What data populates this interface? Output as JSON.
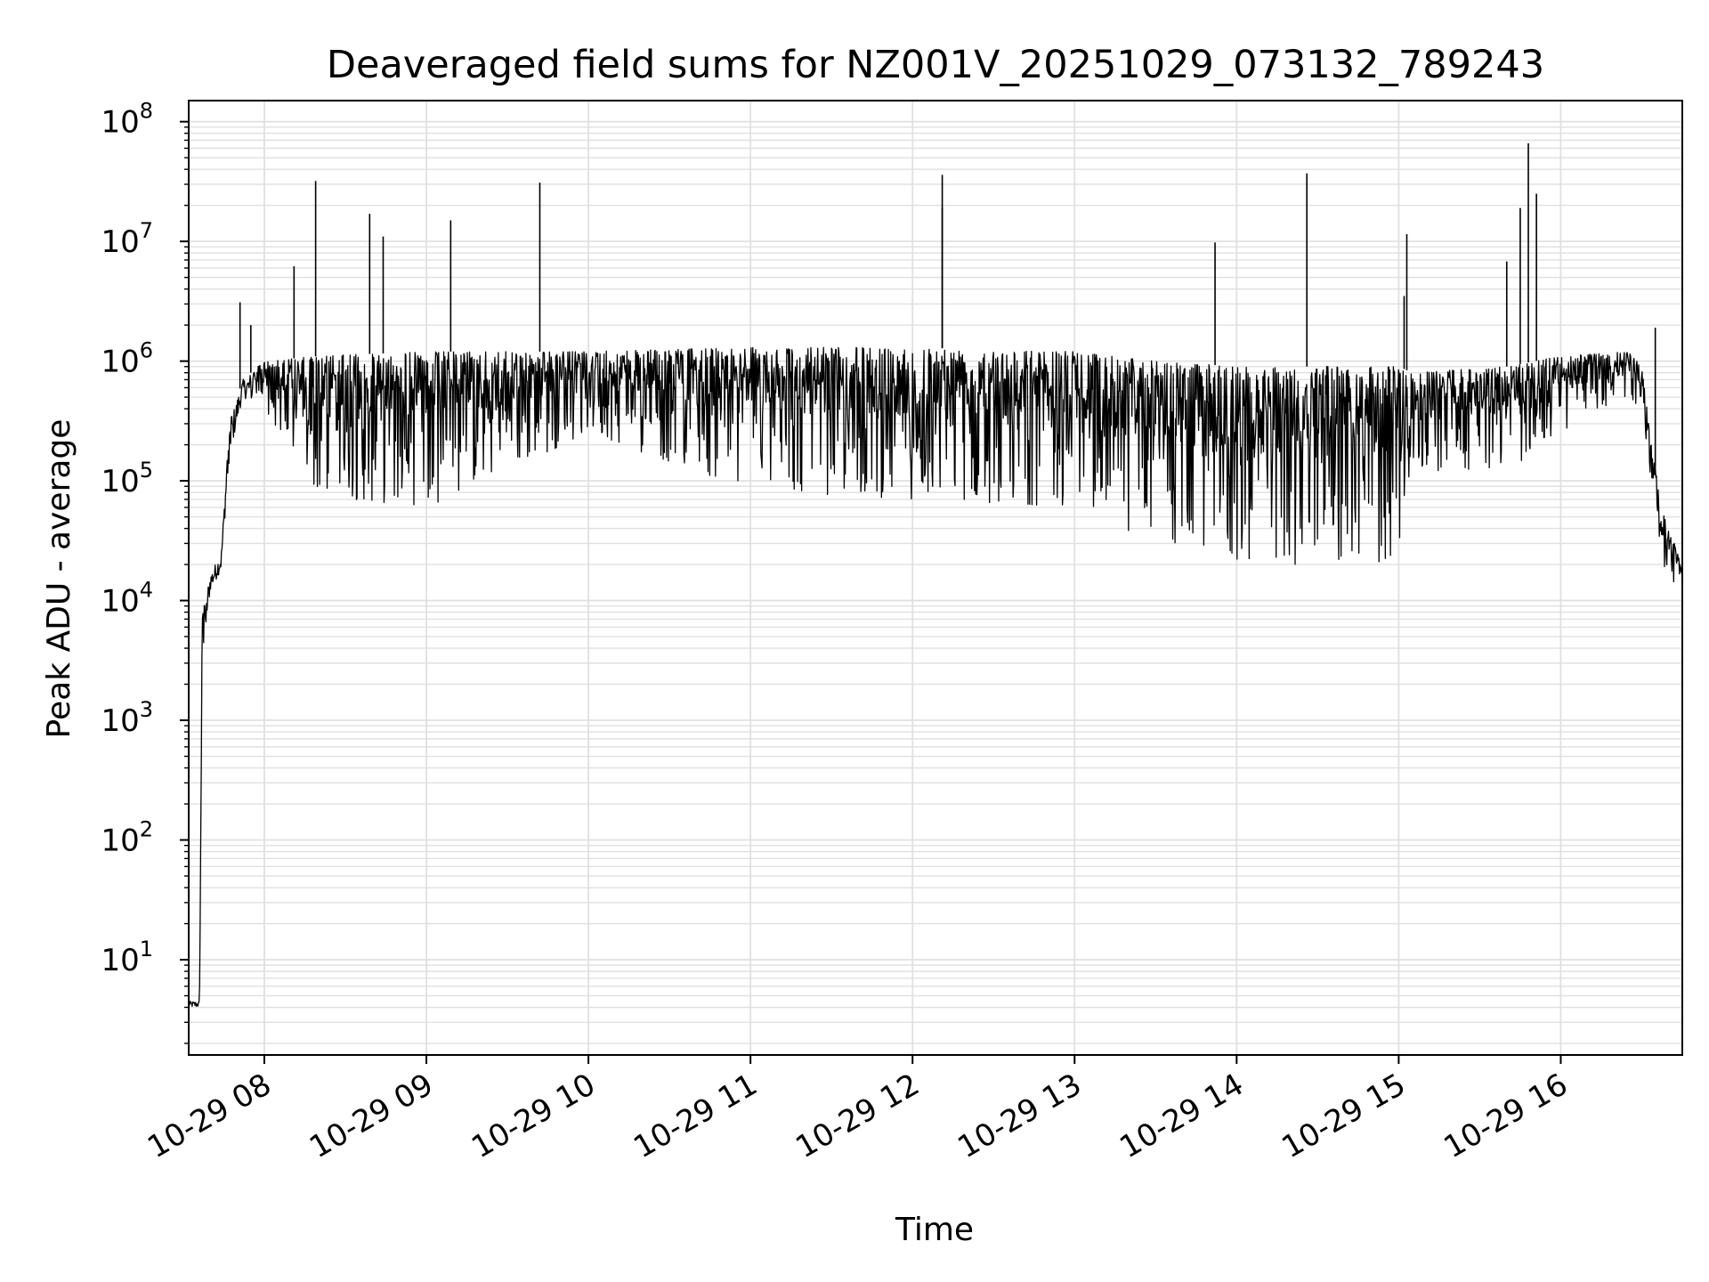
{
  "chart_data": {
    "type": "line",
    "title": "Deaveraged field sums for NZ001V_20251029_073132_789243",
    "xlabel": "Time",
    "ylabel": "Peak ADU - average",
    "yscale": "log",
    "ylim": [
      1.6,
      150000000
    ],
    "xlim": [
      "2025-10-29 07:32",
      "2025-10-29 16:45"
    ],
    "grid": true,
    "line_color": "#000000",
    "grid_color": "#e0e0e0",
    "x_ticks": [
      {
        "t": "2025-10-29 08:00",
        "label": "10-29 08"
      },
      {
        "t": "2025-10-29 09:00",
        "label": "10-29 09"
      },
      {
        "t": "2025-10-29 10:00",
        "label": "10-29 10"
      },
      {
        "t": "2025-10-29 11:00",
        "label": "10-29 11"
      },
      {
        "t": "2025-10-29 12:00",
        "label": "10-29 12"
      },
      {
        "t": "2025-10-29 13:00",
        "label": "10-29 13"
      },
      {
        "t": "2025-10-29 14:00",
        "label": "10-29 14"
      },
      {
        "t": "2025-10-29 15:00",
        "label": "10-29 15"
      },
      {
        "t": "2025-10-29 16:00",
        "label": "10-29 16"
      }
    ],
    "y_ticks": [
      {
        "value": 10,
        "base": "10",
        "exp": "1"
      },
      {
        "value": 100,
        "base": "10",
        "exp": "2"
      },
      {
        "value": 1000,
        "base": "10",
        "exp": "3"
      },
      {
        "value": 10000,
        "base": "10",
        "exp": "4"
      },
      {
        "value": 100000,
        "base": "10",
        "exp": "5"
      },
      {
        "value": 1000000,
        "base": "10",
        "exp": "6"
      },
      {
        "value": 10000000,
        "base": "10",
        "exp": "7"
      },
      {
        "value": 100000000,
        "base": "10",
        "exp": "8"
      }
    ],
    "envelope": [
      {
        "t": "2025-10-29 07:32",
        "low": 4,
        "high": 4.5
      },
      {
        "t": "2025-10-29 07:36",
        "low": 4,
        "high": 4.5
      },
      {
        "t": "2025-10-29 07:37",
        "low": 3000,
        "high": 8000
      },
      {
        "t": "2025-10-29 07:40",
        "low": 12000,
        "high": 17000
      },
      {
        "t": "2025-10-29 07:44",
        "low": 18000,
        "high": 25000
      },
      {
        "t": "2025-10-29 07:47",
        "low": 150000,
        "high": 300000
      },
      {
        "t": "2025-10-29 07:52",
        "low": 500000,
        "high": 700000
      },
      {
        "t": "2025-10-29 08:00",
        "low": 400000,
        "high": 1000000
      },
      {
        "t": "2025-10-29 08:20",
        "low": 70000,
        "high": 1100000
      },
      {
        "t": "2025-10-29 09:00",
        "low": 60000,
        "high": 1200000
      },
      {
        "t": "2025-10-29 09:30",
        "low": 120000,
        "high": 1200000
      },
      {
        "t": "2025-10-29 10:00",
        "low": 250000,
        "high": 1200000
      },
      {
        "t": "2025-10-29 11:00",
        "low": 80000,
        "high": 1300000
      },
      {
        "t": "2025-10-29 12:00",
        "low": 70000,
        "high": 1300000
      },
      {
        "t": "2025-10-29 13:00",
        "low": 60000,
        "high": 1200000
      },
      {
        "t": "2025-10-29 13:30",
        "low": 30000,
        "high": 1000000
      },
      {
        "t": "2025-10-29 14:00",
        "low": 20000,
        "high": 900000
      },
      {
        "t": "2025-10-29 15:00",
        "low": 20000,
        "high": 900000
      },
      {
        "t": "2025-10-29 15:05",
        "low": 120000,
        "high": 800000
      },
      {
        "t": "2025-10-29 15:40",
        "low": 120000,
        "high": 900000
      },
      {
        "t": "2025-10-29 16:00",
        "low": 250000,
        "high": 1100000
      },
      {
        "t": "2025-10-29 16:25",
        "low": 500000,
        "high": 1200000
      },
      {
        "t": "2025-10-29 16:30",
        "low": 400000,
        "high": 900000
      },
      {
        "t": "2025-10-29 16:37",
        "low": 20000,
        "high": 60000
      },
      {
        "t": "2025-10-29 16:45",
        "low": 10000,
        "high": 20000
      }
    ],
    "spikes": [
      {
        "t": "2025-10-29 07:51",
        "value": 3100000
      },
      {
        "t": "2025-10-29 07:55",
        "value": 2000000
      },
      {
        "t": "2025-10-29 08:11",
        "value": 6200000
      },
      {
        "t": "2025-10-29 08:19",
        "value": 32000000
      },
      {
        "t": "2025-10-29 08:39",
        "value": 17000000
      },
      {
        "t": "2025-10-29 08:44",
        "value": 11000000
      },
      {
        "t": "2025-10-29 09:09",
        "value": 15000000
      },
      {
        "t": "2025-10-29 09:42",
        "value": 31000000
      },
      {
        "t": "2025-10-29 12:11",
        "value": 36000000
      },
      {
        "t": "2025-10-29 12:11",
        "value": 19000000
      },
      {
        "t": "2025-10-29 13:52",
        "value": 9800000
      },
      {
        "t": "2025-10-29 14:26",
        "value": 37000000
      },
      {
        "t": "2025-10-29 15:02",
        "value": 3500000
      },
      {
        "t": "2025-10-29 15:03",
        "value": 11500000
      },
      {
        "t": "2025-10-29 15:40",
        "value": 6800000
      },
      {
        "t": "2025-10-29 15:45",
        "value": 19000000
      },
      {
        "t": "2025-10-29 15:48",
        "value": 66000000
      },
      {
        "t": "2025-10-29 15:51",
        "value": 25000000
      },
      {
        "t": "2025-10-29 16:35",
        "value": 1900000
      }
    ]
  }
}
